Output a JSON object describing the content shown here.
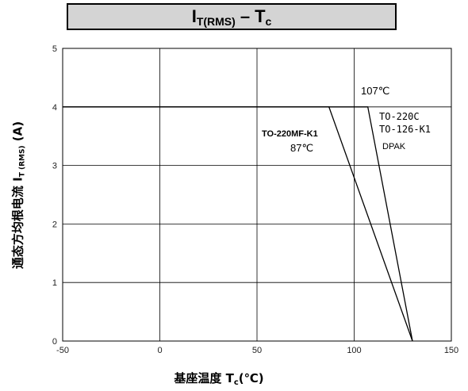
{
  "title": {
    "main": "I",
    "main_sub": "T(RMS)",
    "dash": "–",
    "second": "T",
    "second_sub": "c"
  },
  "ylabel": {
    "prefix": "通态方均根电流 I",
    "sub": "T (RMS)",
    "suffix": " (A)"
  },
  "xlabel": {
    "prefix": "基座温度 T",
    "sub": "c",
    "suffix": "(℃)"
  },
  "chart_data": {
    "type": "line",
    "xlim": [
      -50,
      150
    ],
    "ylim": [
      0,
      5
    ],
    "x_ticks": [
      "-50",
      "0",
      "50",
      "100",
      "150"
    ],
    "y_ticks": [
      "0",
      "1",
      "2",
      "3",
      "4",
      "5"
    ],
    "grid": true,
    "series": [
      {
        "name": "TO-220MF-K1",
        "x": [
          -50,
          87,
          130
        ],
        "y": [
          4,
          4,
          0
        ]
      },
      {
        "name": "TO-220C / TO-126-K1 / DPAK",
        "x": [
          -50,
          107,
          130
        ],
        "y": [
          4,
          4,
          0
        ]
      }
    ],
    "annotations": {
      "t107": "107℃",
      "to220c": "TO-220C",
      "to126": "TO-126-K1",
      "dpak": "DPAK",
      "to220mf": "TO-220MF-K1",
      "t87": "87℃"
    }
  }
}
